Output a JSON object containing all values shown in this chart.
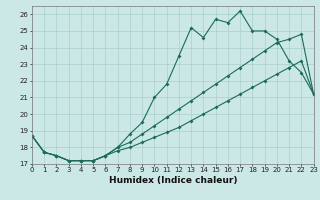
{
  "xlabel": "Humidex (Indice chaleur)",
  "bg_color": "#cce8e6",
  "grid_color": "#aacfcd",
  "line_color": "#1a6b5a",
  "x": [
    0,
    1,
    2,
    3,
    4,
    5,
    6,
    7,
    8,
    9,
    10,
    11,
    12,
    13,
    14,
    15,
    16,
    17,
    18,
    19,
    20,
    21,
    22,
    23
  ],
  "line1": [
    18.7,
    17.7,
    17.5,
    17.2,
    17.2,
    17.2,
    17.5,
    18.0,
    18.8,
    19.5,
    21.0,
    21.8,
    23.5,
    25.2,
    24.6,
    25.7,
    25.5,
    26.2,
    25.0,
    25.0,
    24.5,
    23.2,
    22.5,
    21.2
  ],
  "line2": [
    18.7,
    17.7,
    17.5,
    17.2,
    17.2,
    17.2,
    17.5,
    18.0,
    18.3,
    18.8,
    19.3,
    19.8,
    20.3,
    20.8,
    21.3,
    21.8,
    22.3,
    22.8,
    23.3,
    23.8,
    24.3,
    24.5,
    24.8,
    21.2
  ],
  "line3": [
    18.7,
    17.7,
    17.5,
    17.2,
    17.2,
    17.2,
    17.5,
    17.8,
    18.0,
    18.3,
    18.6,
    18.9,
    19.2,
    19.6,
    20.0,
    20.4,
    20.8,
    21.2,
    21.6,
    22.0,
    22.4,
    22.8,
    23.2,
    21.2
  ],
  "xlim": [
    0,
    23
  ],
  "ylim": [
    17.0,
    26.5
  ],
  "yticks": [
    17,
    18,
    19,
    20,
    21,
    22,
    23,
    24,
    25,
    26
  ],
  "xticks": [
    0,
    1,
    2,
    3,
    4,
    5,
    6,
    7,
    8,
    9,
    10,
    11,
    12,
    13,
    14,
    15,
    16,
    17,
    18,
    19,
    20,
    21,
    22,
    23
  ],
  "title_fontsize": 7,
  "xlabel_fontsize": 6.5,
  "tick_fontsize": 5,
  "marker_size": 2.0,
  "linewidth": 0.8
}
